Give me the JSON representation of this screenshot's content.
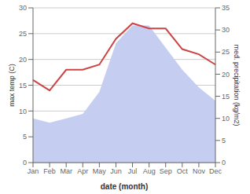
{
  "chart_data": {
    "type": "line",
    "xlabel": "date (month)",
    "ylabel": "max temp (C)",
    "y2label": "med. precipitation (kg/m2)",
    "categories": [
      "Jan",
      "Feb",
      "Mar",
      "Apr",
      "May",
      "Jun",
      "Jul",
      "Aug",
      "Sep",
      "Oct",
      "Nov",
      "Dec"
    ],
    "series": [
      {
        "type": "area",
        "axis": "y2",
        "color": "#c5cef0",
        "values": [
          10,
          9,
          10,
          11,
          16,
          27,
          31,
          31,
          26,
          21,
          17,
          14
        ]
      },
      {
        "type": "line",
        "color": "#cc4444",
        "values": [
          16,
          14,
          18,
          18,
          19,
          24,
          27,
          26,
          26,
          22,
          21,
          19
        ]
      }
    ],
    "ylim": [
      0,
      30
    ],
    "yticks": [
      0,
      5,
      10,
      15,
      20,
      25,
      30
    ],
    "y2lim": [
      0,
      35
    ],
    "y2ticks": [
      0,
      5,
      10,
      15,
      20,
      25,
      30,
      35
    ],
    "grid": true
  }
}
